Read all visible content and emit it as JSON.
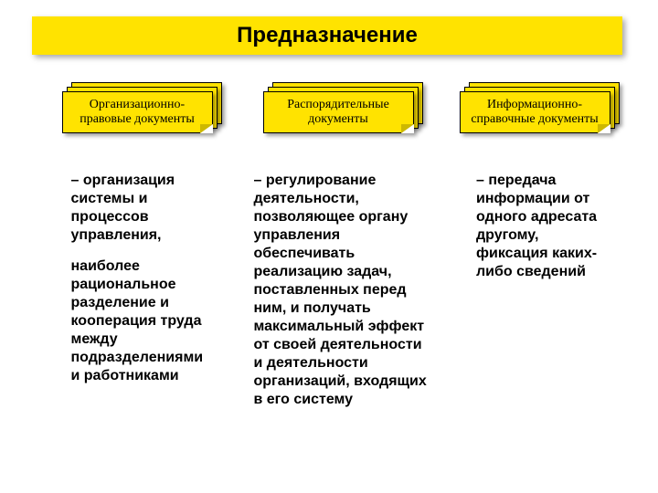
{
  "title": "Предназначение",
  "title_bar_bg": "#ffe300",
  "card_bg": "#ffe300",
  "card_border": "#000000",
  "card_fold": "#cdb800",
  "background_color": "#ffffff",
  "text_color": "#000000",
  "cards": [
    {
      "label": "Организационно-правовые документы"
    },
    {
      "label": "Распорядительные документы"
    },
    {
      "label": "Информационно-справочные документы"
    }
  ],
  "columns": [
    {
      "paragraphs": [
        "– организация системы и процессов управления,",
        "наиболее рациональное разделение и кооперация труда между подразделениями и работниками"
      ]
    },
    {
      "paragraphs": [
        "– регулирование деятельности, позволяющее органу управления обеспечивать реализацию задач, поставленных перед ним, и получать максимальный эффект от своей деятельности и деятельности организаций, входящих в его систему"
      ]
    },
    {
      "paragraphs": [
        "– передача информации от одного адресата другому, фиксация каких-либо сведений"
      ]
    }
  ]
}
